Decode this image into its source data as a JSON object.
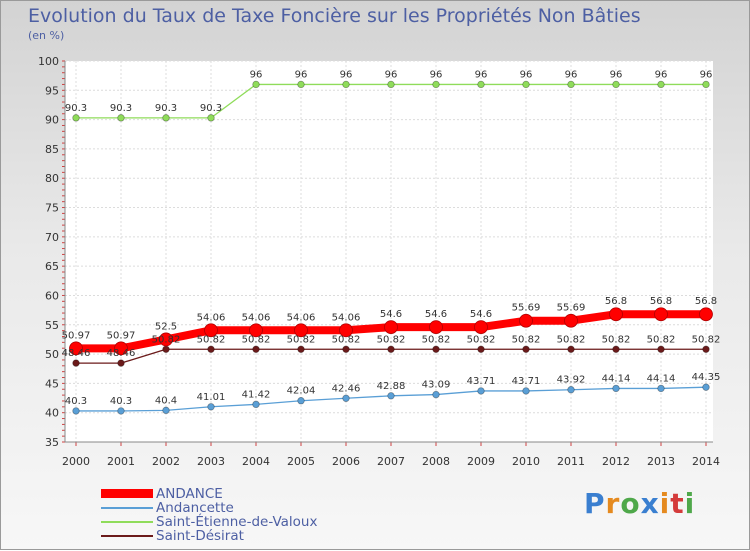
{
  "chart_data": {
    "type": "line",
    "title": "Evolution du Taux de Taxe Foncière sur les Propriétés Non Bâties",
    "subtitle": "(en %)",
    "xlabel": "",
    "ylabel": "(en %)",
    "categories": [
      "2000",
      "2001",
      "2002",
      "2003",
      "2004",
      "2005",
      "2006",
      "2007",
      "2008",
      "2009",
      "2010",
      "2011",
      "2012",
      "2013",
      "2014"
    ],
    "ylim": [
      35,
      100
    ],
    "yticks": [
      35,
      40,
      45,
      50,
      55,
      60,
      65,
      70,
      75,
      80,
      85,
      90,
      95,
      100
    ],
    "grid": true,
    "legend_position": "bottom-left",
    "series": [
      {
        "name": "ANDANCE",
        "color": "#ff0000",
        "values": [
          50.97,
          50.97,
          52.5,
          54.06,
          54.06,
          54.06,
          54.06,
          54.6,
          54.6,
          54.6,
          55.69,
          55.69,
          56.8,
          56.8,
          56.8
        ],
        "labels": [
          "50.97",
          "50.97",
          "52.5",
          "54.06",
          "54.06",
          "54.06",
          "54.06",
          "54.6",
          "54.6",
          "54.6",
          "55.69",
          "55.69",
          "56.8",
          "56.8",
          "56.8"
        ]
      },
      {
        "name": "Andancette",
        "color": "#5a9fd6",
        "values": [
          40.3,
          40.3,
          40.4,
          41.01,
          41.42,
          42.04,
          42.46,
          42.88,
          43.09,
          43.71,
          43.71,
          43.92,
          44.14,
          44.14,
          44.35
        ],
        "labels": [
          "40.3",
          "40.3",
          "40.4",
          "41.01",
          "41.42",
          "42.04",
          "42.46",
          "42.88",
          "43.09",
          "43.71",
          "43.71",
          "43.92",
          "44.14",
          "44.14",
          "44.35"
        ]
      },
      {
        "name": "Saint-Étienne-de-Valoux",
        "color": "#8fdc5a",
        "values": [
          90.3,
          90.3,
          90.3,
          90.3,
          96,
          96,
          96,
          96,
          96,
          96,
          96,
          96,
          96,
          96,
          96
        ],
        "labels": [
          "90.3",
          "90.3",
          "90.3",
          "90.3",
          "96",
          "96",
          "96",
          "96",
          "96",
          "96",
          "96",
          "96",
          "96",
          "96",
          "96"
        ]
      },
      {
        "name": "Saint-Désirat",
        "color": "#6b1a1a",
        "values": [
          48.46,
          48.46,
          50.82,
          50.82,
          50.82,
          50.82,
          50.82,
          50.82,
          50.82,
          50.82,
          50.82,
          50.82,
          50.82,
          50.82,
          50.82
        ],
        "labels": [
          "48.46",
          "48.46",
          "50.82",
          "50.82",
          "50.82",
          "50.82",
          "50.82",
          "50.82",
          "50.82",
          "50.82",
          "50.82",
          "50.82",
          "50.82",
          "50.82",
          "50.82"
        ]
      }
    ]
  },
  "legend": [
    "ANDANCE",
    "Andancette",
    "Saint-Étienne-de-Valoux",
    "Saint-Désirat"
  ],
  "logo": {
    "text": "Proxiti",
    "letters": [
      "P",
      "r",
      "o",
      "x",
      "i",
      "t",
      "i"
    ],
    "colors": [
      "#3a7fd0",
      "#e58a1f",
      "#4fa84a",
      "#3a7fd0",
      "#e58a1f",
      "#d43b3b",
      "#4fa84a"
    ]
  }
}
